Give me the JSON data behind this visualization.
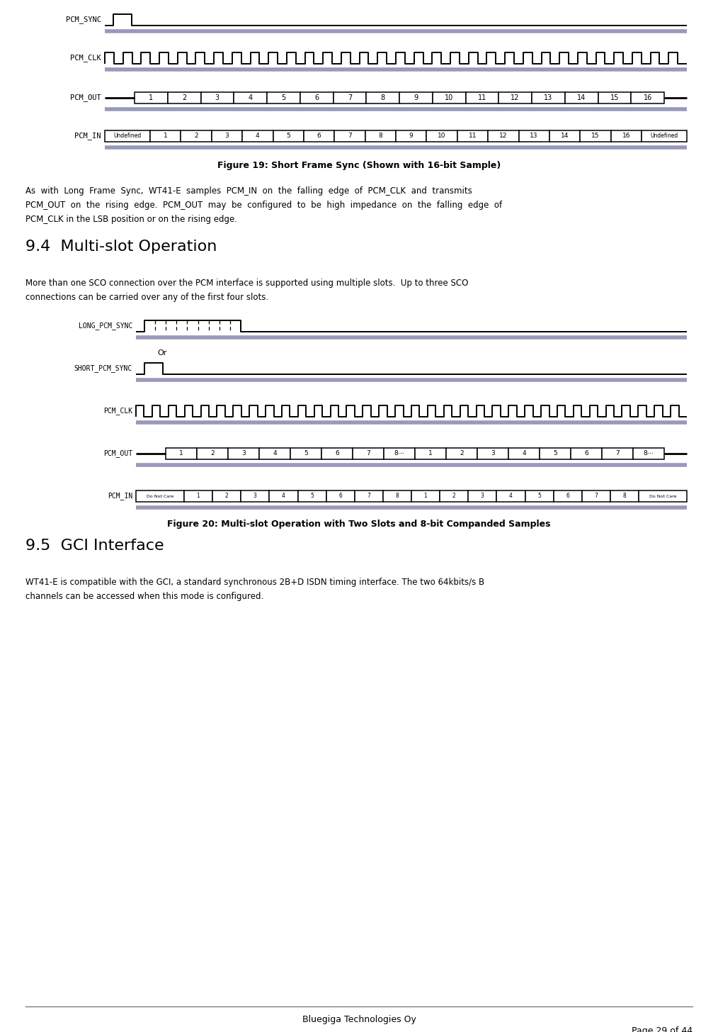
{
  "page_width": 10.14,
  "page_height": 14.56,
  "bg_color": "#ffffff",
  "fig19_caption": "Figure 19: Short Frame Sync (Shown with 16-bit Sample)",
  "fig20_caption": "Figure 20: Multi-slot Operation with Two Slots and 8-bit Companded Samples",
  "section94_title": "9.4  Multi-slot Operation",
  "section95_title": "9.5  GCI Interface",
  "footer_company": "Bluegiga Technologies Oy",
  "footer_page": "Page 29 of 44",
  "signal_color": "#000000",
  "shadow_color": "#9999bb",
  "box_bg": "#ffffff"
}
